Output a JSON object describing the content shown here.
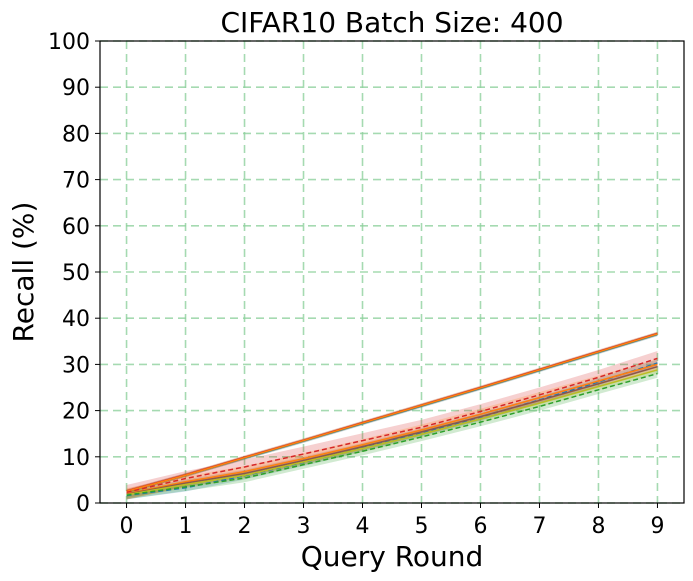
{
  "chart_data": {
    "type": "line",
    "title": "CIFAR10    Batch Size: 400",
    "xlabel": "Query Round",
    "ylabel": "Recall (%)",
    "xlim": [
      -0.45,
      9.45
    ],
    "ylim": [
      0,
      100
    ],
    "x": [
      0,
      1,
      2,
      3,
      4,
      5,
      6,
      7,
      8,
      9
    ],
    "xticks": [
      0,
      1,
      2,
      3,
      4,
      5,
      6,
      7,
      8,
      9
    ],
    "yticks": [
      0,
      10,
      20,
      30,
      40,
      50,
      60,
      70,
      80,
      90,
      100
    ],
    "grid": true,
    "grid_color": "#8fd19e",
    "series": [
      {
        "color": "#1f77b4",
        "dashed": false,
        "values": [
          2.5,
          6.0,
          9.7,
          13.4,
          17.2,
          21.0,
          24.8,
          28.7,
          32.6,
          36.5
        ],
        "band": 0.4
      },
      {
        "color": "#2ca02c",
        "dashed": false,
        "values": [
          2.5,
          6.0,
          9.8,
          13.5,
          17.3,
          21.1,
          24.9,
          28.8,
          32.7,
          36.6
        ],
        "band": 0.4
      },
      {
        "color": "#d62728",
        "dashed": false,
        "values": [
          2.6,
          6.1,
          9.9,
          13.6,
          17.4,
          21.2,
          25.0,
          28.9,
          32.8,
          36.7
        ],
        "band": 0.4
      },
      {
        "color": "#ff7f0e",
        "dashed": false,
        "values": [
          2.5,
          6.0,
          9.8,
          13.5,
          17.3,
          21.1,
          24.9,
          28.8,
          32.7,
          36.6
        ],
        "band": 0.4
      },
      {
        "color": "#d62728",
        "dashed": true,
        "values": [
          2.3,
          5.3,
          7.8,
          10.6,
          13.5,
          16.4,
          19.8,
          23.4,
          27.2,
          31.3
        ],
        "band": 1.6
      },
      {
        "color": "#1f77b4",
        "dashed": true,
        "values": [
          1.6,
          3.3,
          5.9,
          8.8,
          11.9,
          15.2,
          18.6,
          22.3,
          26.2,
          30.3
        ],
        "band": 0.8
      },
      {
        "color": "#ff7f0e",
        "dashed": false,
        "values": [
          2.0,
          4.6,
          6.8,
          9.6,
          12.6,
          15.8,
          19.2,
          22.8,
          26.4,
          30.0
        ],
        "band": 1.2
      },
      {
        "color": "#8c564b",
        "dashed": false,
        "values": [
          1.9,
          4.3,
          6.4,
          9.2,
          12.2,
          15.4,
          18.7,
          22.2,
          25.8,
          29.5
        ],
        "band": 0.8
      },
      {
        "color": "#bcbd22",
        "dashed": false,
        "values": [
          1.8,
          4.0,
          6.0,
          8.9,
          11.8,
          14.9,
          18.2,
          21.6,
          25.2,
          28.8
        ],
        "band": 0.8
      },
      {
        "color": "#2ca02c",
        "dashed": true,
        "values": [
          1.7,
          3.5,
          5.4,
          8.3,
          11.2,
          14.3,
          17.5,
          20.9,
          24.5,
          28.0
        ],
        "band": 0.9
      }
    ]
  }
}
